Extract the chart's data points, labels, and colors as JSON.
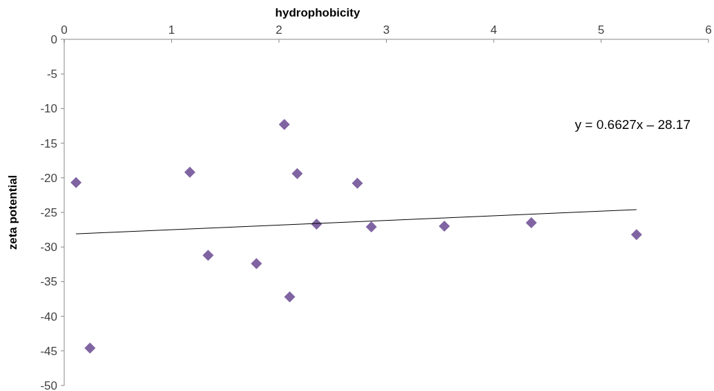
{
  "chart_data": {
    "type": "scatter",
    "xlabel": "hydrophobicity",
    "ylabel": "zeta potential",
    "xlim": [
      0,
      6
    ],
    "xticks": [
      0,
      1,
      2,
      3,
      4,
      5,
      6
    ],
    "ylim": [
      -50,
      0
    ],
    "yticks": [
      -50,
      -45,
      -40,
      -35,
      -30,
      -25,
      -20,
      -15,
      -10,
      -5,
      0
    ],
    "marker": "diamond",
    "grid": false,
    "annotations": [
      "y = 0.6627x – 28.17"
    ],
    "series": [
      {
        "color": "#8064a2",
        "x": [
          0.11,
          0.24,
          1.17,
          1.34,
          1.79,
          2.05,
          2.1,
          2.17,
          2.35,
          2.73,
          2.86,
          3.54,
          4.35,
          5.33
        ],
        "values": [
          -20.7,
          -44.6,
          -19.2,
          -31.2,
          -32.4,
          -12.3,
          -37.2,
          -19.4,
          -26.7,
          -20.8,
          -27.1,
          -27.0,
          -26.5,
          -28.2
        ]
      },
      {
        "type": "line",
        "color": "#000000",
        "marker": "none",
        "line_style": "solid",
        "x": [
          0.11,
          5.33
        ],
        "values": [
          -28.1,
          -24.6
        ]
      }
    ]
  }
}
